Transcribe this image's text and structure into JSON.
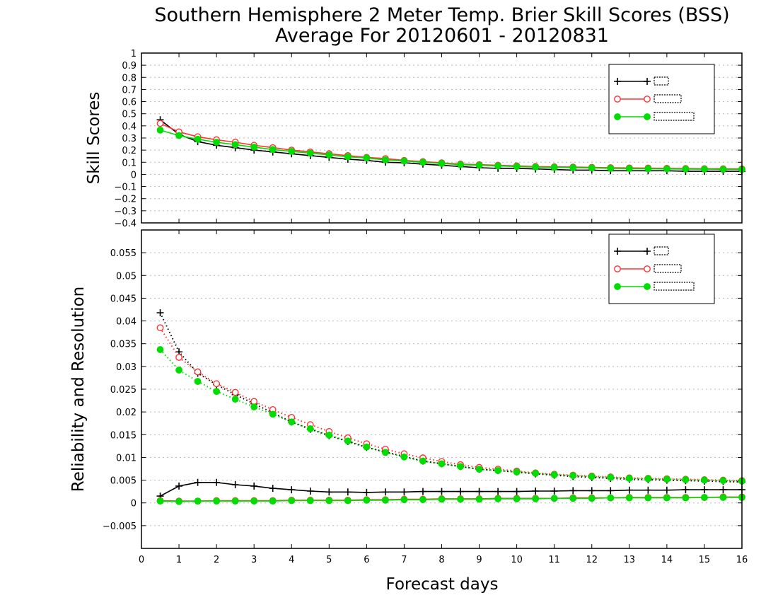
{
  "title": "Southern Hemisphere 2 Meter Temp. Brier Skill Scores (BSS)",
  "subtitle": "Average For 20120601 - 20120831",
  "xlabel": "Forecast days",
  "colors": {
    "black": "#000000",
    "red": "#ff3333",
    "green": "#00dd00"
  },
  "chart_data": [
    {
      "type": "line",
      "ylabel": "Skill Scores",
      "xlim": [
        0,
        16
      ],
      "ylim": [
        -0.4,
        1
      ],
      "x_ticks": [
        0,
        1,
        2,
        3,
        4,
        5,
        6,
        7,
        8,
        9,
        10,
        11,
        12,
        13,
        14,
        15,
        16
      ],
      "y_ticks": [
        -0.4,
        -0.3,
        -0.2,
        -0.1,
        0,
        0.1,
        0.2,
        0.3,
        0.4,
        0.5,
        0.6,
        0.7,
        0.8,
        0.9,
        1
      ],
      "grid": true,
      "legend": "top-right",
      "x": [
        0.5,
        1,
        1.5,
        2,
        2.5,
        3,
        3.5,
        4,
        4.5,
        5,
        5.5,
        6,
        6.5,
        7,
        7.5,
        8,
        8.5,
        9,
        9.5,
        10,
        10.5,
        11,
        11.5,
        12,
        12.5,
        13,
        13.5,
        14,
        14.5,
        15,
        15.5,
        16
      ],
      "series": [
        {
          "marker": "plus",
          "color": "#000000",
          "values": [
            0.45,
            0.33,
            0.27,
            0.24,
            0.22,
            0.2,
            0.185,
            0.17,
            0.155,
            0.14,
            0.125,
            0.115,
            0.1,
            0.095,
            0.085,
            0.075,
            0.065,
            0.055,
            0.05,
            0.05,
            0.045,
            0.04,
            0.035,
            0.035,
            0.03,
            0.03,
            0.03,
            0.03,
            0.025,
            0.025,
            0.025,
            0.025
          ]
        },
        {
          "marker": "circle-open",
          "color": "#ff3333",
          "values": [
            0.42,
            0.35,
            0.31,
            0.285,
            0.265,
            0.24,
            0.22,
            0.2,
            0.185,
            0.17,
            0.155,
            0.14,
            0.13,
            0.115,
            0.105,
            0.095,
            0.085,
            0.08,
            0.075,
            0.07,
            0.065,
            0.062,
            0.06,
            0.058,
            0.055,
            0.053,
            0.052,
            0.05,
            0.048,
            0.047,
            0.046,
            0.045
          ]
        },
        {
          "marker": "circle-filled",
          "color": "#00dd00",
          "values": [
            0.365,
            0.32,
            0.29,
            0.265,
            0.245,
            0.225,
            0.205,
            0.19,
            0.175,
            0.16,
            0.145,
            0.135,
            0.12,
            0.11,
            0.1,
            0.09,
            0.08,
            0.075,
            0.07,
            0.065,
            0.06,
            0.058,
            0.055,
            0.053,
            0.05,
            0.048,
            0.047,
            0.045,
            0.044,
            0.043,
            0.042,
            0.041
          ]
        }
      ]
    },
    {
      "type": "line",
      "ylabel": "Reliability and Resolution",
      "xlim": [
        0,
        16
      ],
      "ylim": [
        -0.01,
        0.06
      ],
      "x_ticks": [
        0,
        1,
        2,
        3,
        4,
        5,
        6,
        7,
        8,
        9,
        10,
        11,
        12,
        13,
        14,
        15,
        16
      ],
      "y_ticks": [
        -0.005,
        0,
        0.005,
        0.01,
        0.015,
        0.02,
        0.025,
        0.03,
        0.035,
        0.04,
        0.045,
        0.05,
        0.055
      ],
      "y_tick_labels": [
        "−0.005",
        "0",
        "0.005",
        "0.01",
        "0.015",
        "0.02",
        "0.025",
        "0.03",
        "0.035",
        "0.04",
        "0.045",
        "0.05",
        "0.055"
      ],
      "grid": true,
      "legend": "top-right",
      "x": [
        0.5,
        1,
        1.5,
        2,
        2.5,
        3,
        3.5,
        4,
        4.5,
        5,
        5.5,
        6,
        6.5,
        7,
        7.5,
        8,
        8.5,
        9,
        9.5,
        10,
        10.5,
        11,
        11.5,
        12,
        12.5,
        13,
        13.5,
        14,
        14.5,
        15,
        15.5,
        16
      ],
      "series": [
        {
          "marker": "plus",
          "color": "#000000",
          "style": "dotted",
          "values": [
            0.0418,
            0.0332,
            0.0285,
            0.026,
            0.0238,
            0.0218,
            0.0198,
            0.0178,
            0.0162,
            0.0148,
            0.0135,
            0.0122,
            0.0112,
            0.0102,
            0.0092,
            0.0086,
            0.008,
            0.0074,
            0.0071,
            0.0068,
            0.0064,
            0.0061,
            0.0058,
            0.0056,
            0.0054,
            0.0052,
            0.0051,
            0.005,
            0.0049,
            0.0048,
            0.0047,
            0.0046
          ]
        },
        {
          "marker": "circle-open",
          "color": "#ff3333",
          "style": "dotted",
          "values": [
            0.0385,
            0.032,
            0.0288,
            0.0262,
            0.0243,
            0.0223,
            0.0205,
            0.0188,
            0.0172,
            0.0157,
            0.0143,
            0.013,
            0.0118,
            0.0108,
            0.0099,
            0.0091,
            0.0084,
            0.0078,
            0.0074,
            0.007,
            0.0066,
            0.0063,
            0.0061,
            0.0059,
            0.0057,
            0.0055,
            0.0054,
            0.0053,
            0.0052,
            0.0051,
            0.005,
            0.0049
          ]
        },
        {
          "marker": "circle-filled",
          "color": "#00dd00",
          "style": "dotted",
          "values": [
            0.0337,
            0.0292,
            0.0267,
            0.0245,
            0.0228,
            0.0211,
            0.0195,
            0.0178,
            0.0163,
            0.0149,
            0.0136,
            0.0123,
            0.0111,
            0.0101,
            0.0092,
            0.0086,
            0.008,
            0.0074,
            0.0071,
            0.0068,
            0.0065,
            0.0062,
            0.006,
            0.0058,
            0.0056,
            0.0054,
            0.0053,
            0.0052,
            0.0051,
            0.005,
            0.0049,
            0.0048
          ]
        },
        {
          "marker": "plus",
          "color": "#000000",
          "style": "solid",
          "values": [
            0.0015,
            0.0037,
            0.0045,
            0.0045,
            0.004,
            0.0037,
            0.0032,
            0.0029,
            0.0026,
            0.0024,
            0.0024,
            0.0023,
            0.0024,
            0.0024,
            0.0025,
            0.0025,
            0.0025,
            0.0025,
            0.0025,
            0.0025,
            0.0026,
            0.0026,
            0.0027,
            0.0027,
            0.0027,
            0.0028,
            0.0028,
            0.0028,
            0.0029,
            0.0029,
            0.0029,
            0.0029
          ]
        },
        {
          "marker": "circle-open",
          "color": "#ff3333",
          "style": "solid",
          "values": [
            0.0005,
            0.0004,
            0.0004,
            0.0005,
            0.0005,
            0.0005,
            0.0005,
            0.0006,
            0.0006,
            0.0006,
            0.0006,
            0.0007,
            0.0007,
            0.0008,
            0.0008,
            0.0009,
            0.0009,
            0.0009,
            0.001,
            0.001,
            0.001,
            0.001,
            0.0011,
            0.0011,
            0.0011,
            0.0012,
            0.0012,
            0.0012,
            0.0012,
            0.0012,
            0.0013,
            0.0013
          ]
        },
        {
          "marker": "circle-filled",
          "color": "#00dd00",
          "style": "solid",
          "values": [
            0.0004,
            0.0003,
            0.0004,
            0.0004,
            0.0004,
            0.0004,
            0.0004,
            0.0005,
            0.0005,
            0.0005,
            0.0005,
            0.0006,
            0.0006,
            0.0007,
            0.0007,
            0.0008,
            0.0008,
            0.0008,
            0.0009,
            0.0009,
            0.0009,
            0.001,
            0.001,
            0.001,
            0.0011,
            0.0011,
            0.0011,
            0.0011,
            0.0011,
            0.0012,
            0.0012,
            0.0012
          ]
        }
      ]
    }
  ]
}
